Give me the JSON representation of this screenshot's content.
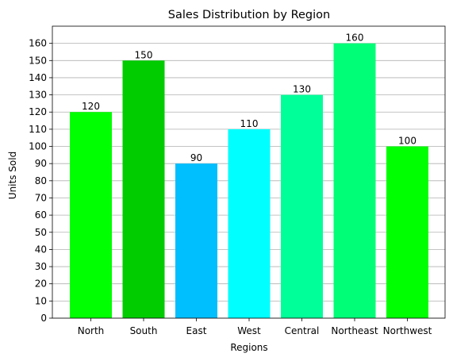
{
  "chart_data": {
    "type": "bar",
    "title": "Sales Distribution by Region",
    "xlabel": "Regions",
    "ylabel": "Units Sold",
    "categories": [
      "North",
      "South",
      "East",
      "West",
      "Central",
      "Northeast",
      "Northwest"
    ],
    "values": [
      120,
      150,
      90,
      110,
      130,
      160,
      100
    ],
    "colors": [
      "#00ff00",
      "#00cc00",
      "#00bfff",
      "#00ffff",
      "#00ff99",
      "#00ff77",
      "#00ff00"
    ],
    "ylim": [
      0,
      170
    ],
    "yticks": [
      0,
      10,
      20,
      30,
      40,
      50,
      60,
      70,
      80,
      90,
      100,
      110,
      120,
      130,
      140,
      150,
      160
    ],
    "grid": "horizontal",
    "data_labels": true
  }
}
